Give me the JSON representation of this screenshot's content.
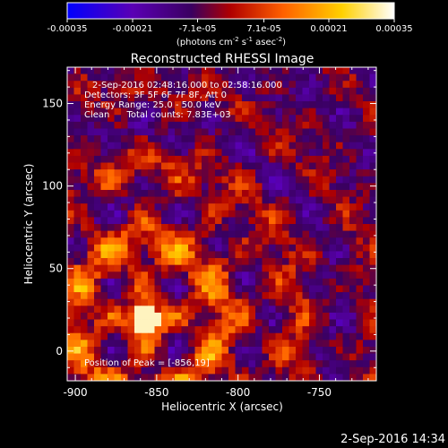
{
  "chart_data": {
    "type": "heatmap",
    "title": "Reconstructed RHESSI Image",
    "xlabel": "Heliocentric X (arcsec)",
    "ylabel": "Heliocentric Y (arcsec)",
    "xlim": [
      -905,
      -715
    ],
    "ylim": [
      -18,
      172
    ],
    "xticks": [
      -900,
      -850,
      -800,
      -750
    ],
    "yticks": [
      0,
      50,
      100,
      150
    ],
    "grid": false,
    "colorbar": {
      "orientation": "horizontal",
      "position": "top",
      "range": [
        -0.00035,
        0.00035
      ],
      "ticks": [
        "-0.00035",
        "-0.00021",
        "-7.1e-05",
        "7.1e-05",
        "0.00021",
        "0.00035"
      ],
      "colors": [
        "#0000ff",
        "#5a00b4",
        "#3a0060",
        "#b00000",
        "#ff6000",
        "#ffd000",
        "#ffffff"
      ]
    },
    "annotations": [
      "2-Sep-2016 02:48:16.000 to 02:58:16.000",
      "Detectors: 3F 5F 6F 7F 8F, Att 0",
      "Energy Range: 25.0 - 50.0 keV",
      "Clean      Total counts: 7.83E+03",
      "Position of Peak = [-856,19]"
    ],
    "peak": [
      -856,
      19
    ],
    "peak_value": 0.00035
  },
  "units_label": {
    "prefix": "(photons cm",
    "sup1": "-2",
    "mid1": " s",
    "sup2": "-1",
    "mid2": " asec",
    "sup3": "-2",
    "suffix": ")"
  },
  "footer_date": "2-Sep-2016 14:34"
}
